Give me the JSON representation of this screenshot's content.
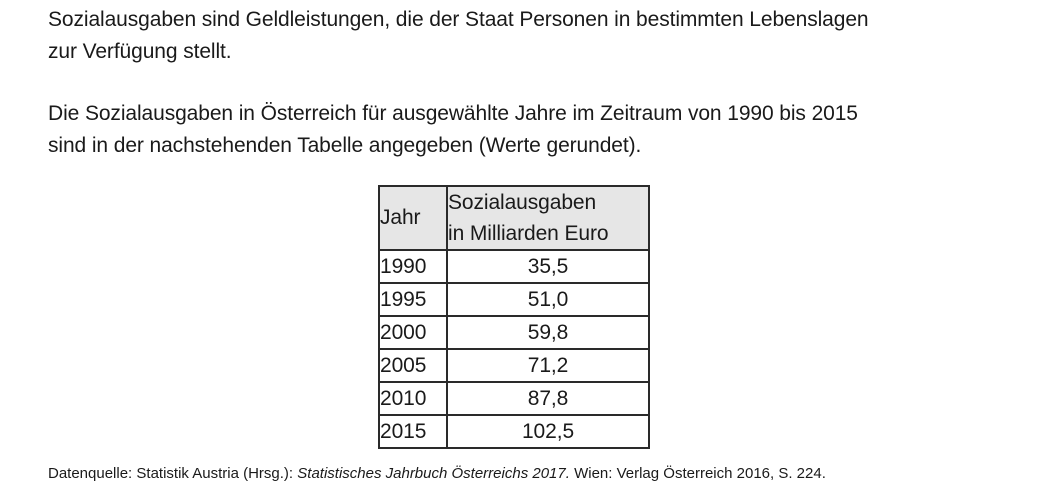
{
  "intro": {
    "line1": "Sozialausgaben sind Geldleistungen, die der Staat Personen in bestimmten Lebenslagen",
    "line2": "zur Verfügung stellt."
  },
  "description": {
    "line1": "Die Sozialausgaben in Österreich für ausgewählte Jahre im Zeitraum von 1990 bis 2015",
    "line2": "sind in der nachstehenden Tabelle angegeben (Werte gerundet)."
  },
  "table": {
    "header_year": "Jahr",
    "header_value_line1": "Sozialausgaben",
    "header_value_line2": "in Milliarden Euro",
    "rows": [
      {
        "year": "1990",
        "value": "35,5"
      },
      {
        "year": "1995",
        "value": "51,0"
      },
      {
        "year": "2000",
        "value": "59,8"
      },
      {
        "year": "2005",
        "value": "71,2"
      },
      {
        "year": "2010",
        "value": "87,8"
      },
      {
        "year": "2015",
        "value": "102,5"
      }
    ]
  },
  "source": {
    "prefix": "Datenquelle: Statistik Austria (Hrsg.): ",
    "title": "Statistisches Jahrbuch Österreichs 2017.",
    "suffix": " Wien: Verlag Österreich 2016, S. 224."
  }
}
